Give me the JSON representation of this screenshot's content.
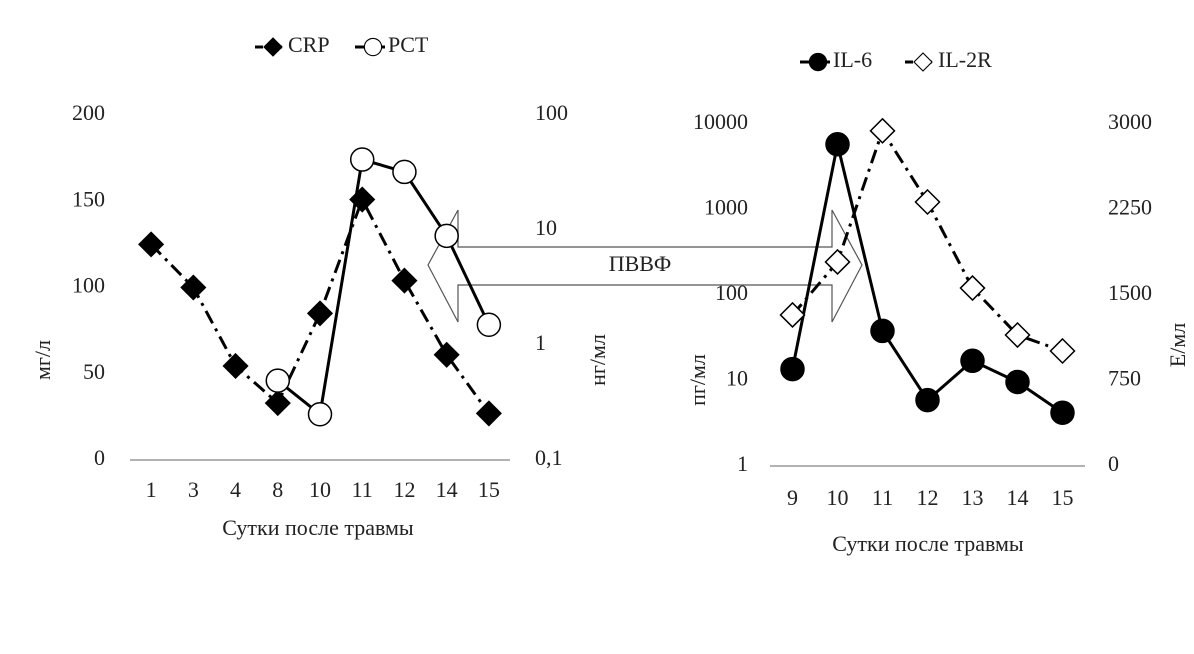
{
  "annotation": "ПВВФ",
  "chart_data": [
    {
      "type": "line",
      "categories": [
        "1",
        "3",
        "4",
        "8",
        "10",
        "11",
        "12",
        "14",
        "15"
      ],
      "x_label": "Сутки после травмы",
      "y_label": "мг/л",
      "y2_label": "нг/мл",
      "ylim": [
        0,
        200
      ],
      "yticks": [
        0,
        50,
        100,
        150,
        200
      ],
      "y2lim": [
        0.1,
        100
      ],
      "y2log": true,
      "y2ticks": [
        {
          "value": 0.1,
          "label": "0,1"
        },
        1,
        10,
        100
      ],
      "series": [
        {
          "name": "CRP",
          "color": "#000000",
          "marker": "diamond",
          "marker_fill": "#000000",
          "line": "dashdot",
          "values": [
            125,
            100,
            54.5,
            33,
            85,
            151,
            104,
            61,
            27
          ]
        },
        {
          "name": "PCT",
          "color": "#000000",
          "marker": "circle",
          "marker_fill": "#ffffff",
          "line": "solid",
          "axis": "y2",
          "values": [
            null,
            null,
            null,
            0.49,
            0.25,
            41,
            32,
            8.9,
            1.5
          ]
        }
      ]
    },
    {
      "type": "line",
      "categories": [
        "9",
        "10",
        "11",
        "12",
        "13",
        "14",
        "15"
      ],
      "x_label": "Сутки после травмы",
      "y_label": "пг/мл",
      "y2_label": "Е/мл",
      "ylim": [
        1,
        10000
      ],
      "ylog": true,
      "yticks": [
        1,
        10,
        100,
        1000,
        10000
      ],
      "y2lim": [
        0,
        3000
      ],
      "y2ticks": [
        0,
        750,
        1500,
        2250,
        3000
      ],
      "series": [
        {
          "name": "IL-6",
          "color": "#000000",
          "marker": "circle",
          "marker_fill": "#000000",
          "line": "solid",
          "values": [
            13.6,
            5800,
            38,
            5.9,
            17,
            9.6,
            4.2
          ]
        },
        {
          "name": "IL-2R",
          "color": "#000000",
          "marker": "diamond",
          "marker_fill": "#ffffff",
          "line": "dashdot",
          "axis": "y2",
          "values": [
            1325,
            1790,
            2940,
            2316,
            1561,
            1149,
            1009
          ]
        }
      ]
    }
  ]
}
